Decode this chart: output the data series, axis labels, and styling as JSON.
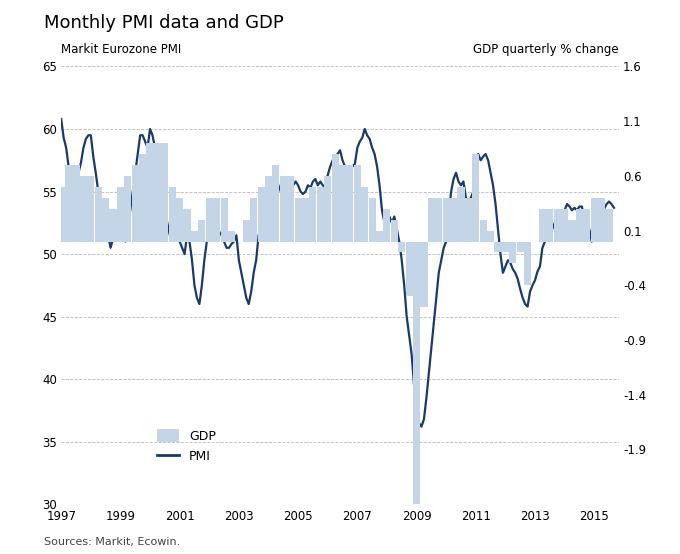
{
  "title": "Monthly PMI data and GDP",
  "ylabel_left": "Markit Eurozone PMI",
  "ylabel_right": "GDP quarterly % change",
  "source": "Sources: Markit, Ecowin.",
  "ylim_left": [
    30,
    65
  ],
  "ylim_right": [
    -2.4,
    1.6
  ],
  "yticks_left": [
    30,
    35,
    40,
    45,
    50,
    55,
    60,
    65
  ],
  "yticks_right": [
    -1.9,
    -1.4,
    -0.9,
    -0.4,
    0.1,
    0.6,
    1.1,
    1.6
  ],
  "xlim": [
    1997.0,
    2015.83
  ],
  "xticks": [
    1997,
    1999,
    2001,
    2003,
    2005,
    2007,
    2009,
    2011,
    2013,
    2015
  ],
  "pmi_color": "#1a3a6b",
  "bar_color": "#c5d5e8",
  "background_color": "#ffffff",
  "grid_color": "#bbbbbb",
  "gdp_quarters": [
    1997.0,
    1997.25,
    1997.5,
    1997.75,
    1998.0,
    1998.25,
    1998.5,
    1998.75,
    1999.0,
    1999.25,
    1999.5,
    1999.75,
    2000.0,
    2000.25,
    2000.5,
    2000.75,
    2001.0,
    2001.25,
    2001.5,
    2001.75,
    2002.0,
    2002.25,
    2002.5,
    2002.75,
    2003.0,
    2003.25,
    2003.5,
    2003.75,
    2004.0,
    2004.25,
    2004.5,
    2004.75,
    2005.0,
    2005.25,
    2005.5,
    2005.75,
    2006.0,
    2006.25,
    2006.5,
    2006.75,
    2007.0,
    2007.25,
    2007.5,
    2007.75,
    2008.0,
    2008.25,
    2008.5,
    2008.75,
    2009.0,
    2009.25,
    2009.5,
    2009.75,
    2010.0,
    2010.25,
    2010.5,
    2010.75,
    2011.0,
    2011.25,
    2011.5,
    2011.75,
    2012.0,
    2012.25,
    2012.5,
    2012.75,
    2013.0,
    2013.25,
    2013.5,
    2013.75,
    2014.0,
    2014.25,
    2014.5,
    2014.75,
    2015.0,
    2015.25,
    2015.5
  ],
  "gdp_values": [
    0.5,
    0.7,
    0.7,
    0.6,
    0.6,
    0.5,
    0.4,
    0.3,
    0.5,
    0.6,
    0.7,
    0.8,
    0.9,
    0.9,
    0.9,
    0.5,
    0.4,
    0.3,
    0.1,
    0.2,
    0.4,
    0.4,
    0.4,
    0.1,
    0.0,
    0.2,
    0.4,
    0.5,
    0.6,
    0.7,
    0.6,
    0.6,
    0.4,
    0.4,
    0.5,
    0.5,
    0.6,
    0.8,
    0.7,
    0.7,
    0.7,
    0.5,
    0.4,
    0.1,
    0.3,
    0.2,
    -0.1,
    -0.5,
    -2.4,
    -0.6,
    0.4,
    0.4,
    0.4,
    0.4,
    0.5,
    0.4,
    0.8,
    0.2,
    0.1,
    -0.1,
    -0.1,
    -0.2,
    -0.1,
    -0.4,
    0.0,
    0.3,
    0.3,
    0.3,
    0.3,
    0.2,
    0.3,
    0.3,
    0.4,
    0.4,
    0.3
  ],
  "pmi_dates": [
    1997.0,
    1997.083,
    1997.167,
    1997.25,
    1997.333,
    1997.417,
    1997.5,
    1997.583,
    1997.667,
    1997.75,
    1997.833,
    1997.917,
    1998.0,
    1998.083,
    1998.167,
    1998.25,
    1998.333,
    1998.417,
    1998.5,
    1998.583,
    1998.667,
    1998.75,
    1998.833,
    1998.917,
    1999.0,
    1999.083,
    1999.167,
    1999.25,
    1999.333,
    1999.417,
    1999.5,
    1999.583,
    1999.667,
    1999.75,
    1999.833,
    1999.917,
    2000.0,
    2000.083,
    2000.167,
    2000.25,
    2000.333,
    2000.417,
    2000.5,
    2000.583,
    2000.667,
    2000.75,
    2000.833,
    2000.917,
    2001.0,
    2001.083,
    2001.167,
    2001.25,
    2001.333,
    2001.417,
    2001.5,
    2001.583,
    2001.667,
    2001.75,
    2001.833,
    2001.917,
    2002.0,
    2002.083,
    2002.167,
    2002.25,
    2002.333,
    2002.417,
    2002.5,
    2002.583,
    2002.667,
    2002.75,
    2002.833,
    2002.917,
    2003.0,
    2003.083,
    2003.167,
    2003.25,
    2003.333,
    2003.417,
    2003.5,
    2003.583,
    2003.667,
    2003.75,
    2003.833,
    2003.917,
    2004.0,
    2004.083,
    2004.167,
    2004.25,
    2004.333,
    2004.417,
    2004.5,
    2004.583,
    2004.667,
    2004.75,
    2004.833,
    2004.917,
    2005.0,
    2005.083,
    2005.167,
    2005.25,
    2005.333,
    2005.417,
    2005.5,
    2005.583,
    2005.667,
    2005.75,
    2005.833,
    2005.917,
    2006.0,
    2006.083,
    2006.167,
    2006.25,
    2006.333,
    2006.417,
    2006.5,
    2006.583,
    2006.667,
    2006.75,
    2006.833,
    2006.917,
    2007.0,
    2007.083,
    2007.167,
    2007.25,
    2007.333,
    2007.417,
    2007.5,
    2007.583,
    2007.667,
    2007.75,
    2007.833,
    2007.917,
    2008.0,
    2008.083,
    2008.167,
    2008.25,
    2008.333,
    2008.417,
    2008.5,
    2008.583,
    2008.667,
    2008.75,
    2008.833,
    2008.917,
    2009.0,
    2009.083,
    2009.167,
    2009.25,
    2009.333,
    2009.417,
    2009.5,
    2009.583,
    2009.667,
    2009.75,
    2009.833,
    2009.917,
    2010.0,
    2010.083,
    2010.167,
    2010.25,
    2010.333,
    2010.417,
    2010.5,
    2010.583,
    2010.667,
    2010.75,
    2010.833,
    2010.917,
    2011.0,
    2011.083,
    2011.167,
    2011.25,
    2011.333,
    2011.417,
    2011.5,
    2011.583,
    2011.667,
    2011.75,
    2011.833,
    2011.917,
    2012.0,
    2012.083,
    2012.167,
    2012.25,
    2012.333,
    2012.417,
    2012.5,
    2012.583,
    2012.667,
    2012.75,
    2012.833,
    2012.917,
    2013.0,
    2013.083,
    2013.167,
    2013.25,
    2013.333,
    2013.417,
    2013.5,
    2013.583,
    2013.667,
    2013.75,
    2013.833,
    2013.917,
    2014.0,
    2014.083,
    2014.167,
    2014.25,
    2014.333,
    2014.417,
    2014.5,
    2014.583,
    2014.667,
    2014.75,
    2014.833,
    2014.917,
    2015.0,
    2015.083,
    2015.167,
    2015.25,
    2015.333,
    2015.417,
    2015.5,
    2015.583,
    2015.667
  ],
  "pmi_values": [
    60.8,
    59.3,
    58.5,
    57.0,
    56.2,
    55.5,
    55.8,
    56.5,
    57.3,
    58.5,
    59.2,
    59.5,
    59.5,
    57.8,
    56.5,
    55.0,
    54.0,
    53.5,
    52.5,
    51.5,
    50.5,
    51.2,
    52.0,
    53.0,
    52.5,
    51.5,
    51.0,
    52.5,
    53.5,
    55.0,
    56.5,
    58.0,
    59.5,
    59.5,
    59.0,
    58.5,
    60.0,
    59.5,
    58.5,
    57.0,
    55.5,
    54.0,
    53.5,
    52.5,
    51.5,
    51.8,
    52.5,
    51.5,
    51.0,
    50.5,
    50.0,
    51.5,
    51.0,
    49.5,
    47.5,
    46.5,
    46.0,
    47.5,
    49.5,
    51.0,
    51.5,
    51.8,
    52.0,
    52.0,
    51.8,
    51.5,
    51.0,
    50.5,
    50.5,
    50.8,
    51.0,
    51.5,
    49.5,
    48.5,
    47.5,
    46.5,
    46.0,
    47.0,
    48.5,
    49.5,
    51.5,
    52.0,
    53.0,
    54.0,
    54.8,
    55.2,
    55.8,
    56.3,
    55.5,
    55.0,
    54.5,
    54.0,
    54.5,
    55.2,
    55.5,
    55.8,
    55.5,
    55.0,
    54.8,
    55.0,
    55.5,
    55.3,
    55.8,
    56.0,
    55.5,
    55.8,
    55.5,
    55.3,
    56.3,
    57.0,
    57.5,
    57.8,
    58.0,
    58.3,
    57.5,
    57.0,
    56.5,
    56.8,
    57.0,
    57.2,
    58.5,
    59.0,
    59.3,
    60.0,
    59.5,
    59.2,
    58.5,
    58.0,
    57.0,
    55.5,
    53.5,
    52.5,
    52.8,
    53.0,
    52.5,
    53.0,
    52.0,
    51.0,
    49.5,
    47.5,
    45.0,
    43.5,
    42.0,
    39.5,
    37.5,
    36.5,
    36.2,
    36.8,
    38.5,
    40.5,
    42.5,
    44.5,
    46.5,
    48.5,
    49.5,
    50.5,
    51.0,
    53.0,
    55.0,
    56.0,
    56.5,
    55.8,
    55.5,
    55.8,
    54.5,
    53.8,
    54.5,
    55.0,
    57.0,
    58.0,
    57.5,
    57.8,
    58.0,
    57.5,
    56.5,
    55.5,
    54.0,
    52.0,
    50.0,
    48.5,
    49.0,
    49.5,
    49.3,
    48.8,
    48.5,
    48.0,
    47.2,
    46.5,
    46.0,
    45.8,
    47.0,
    47.5,
    47.9,
    48.6,
    49.0,
    50.5,
    51.0,
    51.5,
    51.5,
    52.0,
    52.5,
    52.8,
    53.0,
    53.5,
    53.5,
    54.0,
    53.8,
    53.5,
    53.7,
    53.5,
    53.8,
    53.8,
    52.8,
    52.5,
    52.0,
    51.0,
    53.5,
    53.3,
    53.5,
    54.0,
    53.6,
    54.0,
    54.2,
    54.0,
    53.7
  ]
}
